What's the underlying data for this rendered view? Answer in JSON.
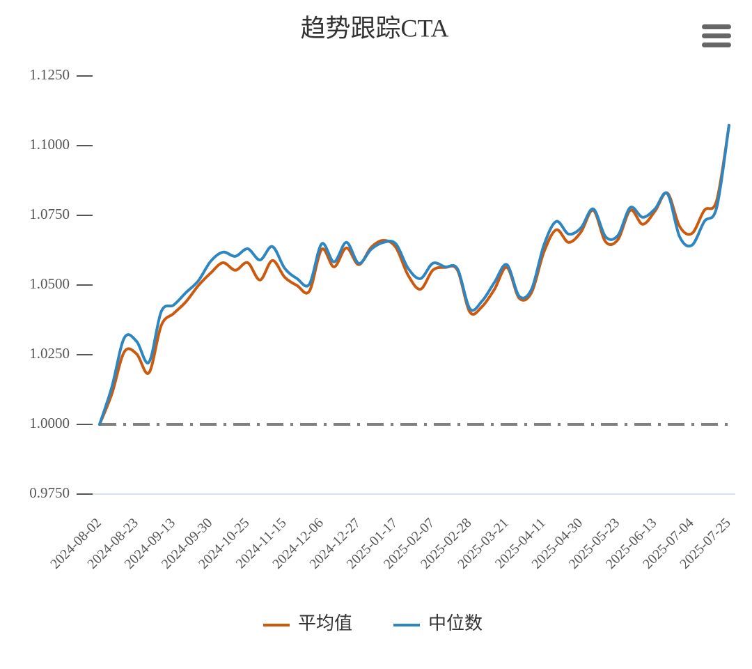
{
  "chart_data": {
    "type": "line",
    "title": "趋势跟踪CTA",
    "categories": [
      "2024-08-02",
      null,
      null,
      "2024-08-23",
      null,
      null,
      "2024-09-13",
      null,
      null,
      "2024-09-30",
      null,
      null,
      "2024-10-25",
      null,
      null,
      "2024-11-15",
      null,
      null,
      "2024-12-06",
      null,
      null,
      "2024-12-27",
      null,
      null,
      "2025-01-17",
      null,
      null,
      "2025-02-07",
      null,
      null,
      "2025-02-28",
      null,
      null,
      "2025-03-21",
      null,
      null,
      "2025-04-11",
      null,
      null,
      "2025-04-30",
      null,
      null,
      "2025-05-23",
      null,
      null,
      "2025-06-13",
      null,
      null,
      "2025-07-04",
      null,
      null,
      "2025-07-25"
    ],
    "series": [
      {
        "name": "平均值",
        "color": "#cc5a0e",
        "values": [
          1.0,
          1.011,
          1.026,
          1.0253,
          1.0185,
          1.0355,
          1.0398,
          1.044,
          1.0498,
          1.0543,
          1.058,
          1.0553,
          1.058,
          1.0518,
          1.0588,
          1.0528,
          1.0498,
          1.0478,
          1.0628,
          1.0565,
          1.0633,
          1.0573,
          1.0635,
          1.066,
          1.0635,
          1.0535,
          1.0485,
          1.0553,
          1.0563,
          1.0553,
          1.0403,
          1.0423,
          1.0485,
          1.0563,
          1.0453,
          1.0473,
          1.0618,
          1.0698,
          1.0653,
          1.069,
          1.0768,
          1.0655,
          1.0663,
          1.0768,
          1.0718,
          1.0765,
          1.083,
          1.071,
          1.0685,
          1.0768,
          1.0803,
          1.1073
        ]
      },
      {
        "name": "中位数",
        "color": "#2e86c1",
        "values": [
          1.0,
          1.0135,
          1.031,
          1.0298,
          1.0223,
          1.0405,
          1.0428,
          1.0473,
          1.0515,
          1.0585,
          1.0618,
          1.0603,
          1.063,
          1.059,
          1.0638,
          1.056,
          1.0523,
          1.0503,
          1.0648,
          1.0583,
          1.0653,
          1.0578,
          1.0628,
          1.0653,
          1.0648,
          1.056,
          1.0523,
          1.0578,
          1.0565,
          1.0558,
          1.0415,
          1.0443,
          1.051,
          1.0573,
          1.046,
          1.0485,
          1.0643,
          1.0728,
          1.0683,
          1.0705,
          1.0773,
          1.0673,
          1.0678,
          1.0778,
          1.0743,
          1.0773,
          1.0828,
          1.0673,
          1.0643,
          1.0728,
          1.0778,
          1.1073
        ]
      }
    ],
    "ylim": [
      0.975,
      1.125
    ],
    "yticks": [
      {
        "value": 0.975,
        "label": "0.9750"
      },
      {
        "value": 1.0,
        "label": "1.0000"
      },
      {
        "value": 1.025,
        "label": "1.0250"
      },
      {
        "value": 1.05,
        "label": "1.0500"
      },
      {
        "value": 1.075,
        "label": "1.0750"
      },
      {
        "value": 1.1,
        "label": "1.1000"
      },
      {
        "value": 1.125,
        "label": "1.1250"
      }
    ],
    "plot_lines": [
      {
        "value": 1,
        "color": "#808080"
      }
    ],
    "legend": "bottom"
  }
}
